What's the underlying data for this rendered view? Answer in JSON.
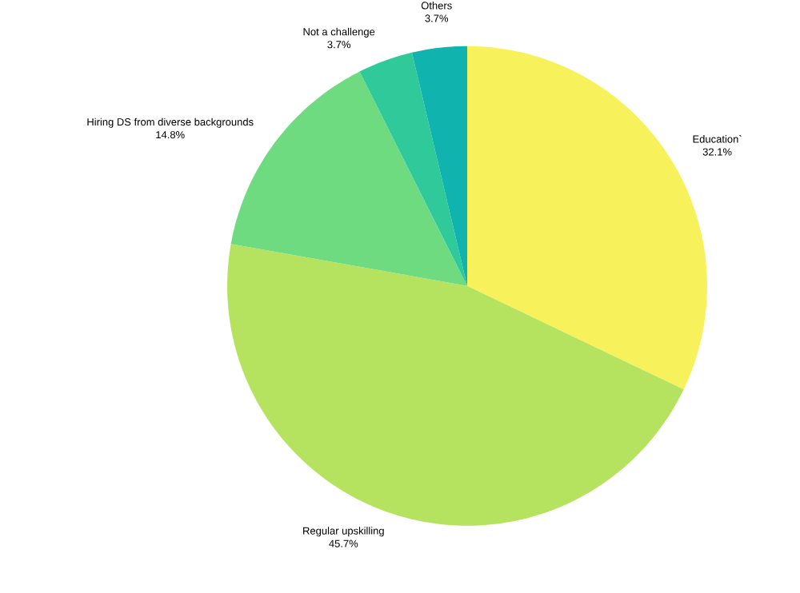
{
  "chart_data": {
    "type": "pie",
    "categories": [
      "Education`",
      "Regular upskilling",
      "Hiring DS from diverse backgrounds",
      "Not a challenge",
      "Others"
    ],
    "values": [
      32.1,
      45.7,
      14.8,
      3.7,
      3.7
    ],
    "value_labels": [
      "32.1%",
      "45.7%",
      "14.8%",
      "3.7%",
      "3.7%"
    ],
    "colors": [
      "#f7f25c",
      "#b5e35f",
      "#6fdb80",
      "#2fc99a",
      "#10b3ad"
    ]
  }
}
